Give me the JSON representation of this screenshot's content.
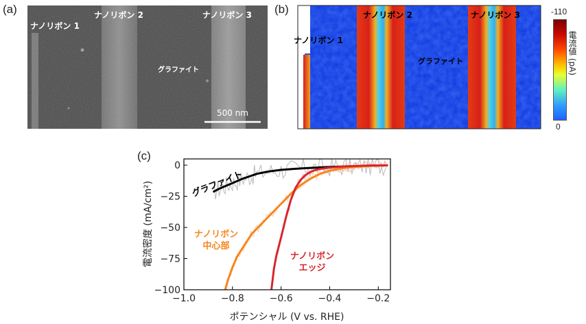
{
  "panel_a": {
    "letter": "(a)",
    "labels": {
      "ribbon1": "ナノリボン 1",
      "ribbon2": "ナノリボン 2",
      "ribbon3": "ナノリボン 3",
      "graphite": "グラファイト"
    },
    "scalebar": "500 nm"
  },
  "panel_b": {
    "letter": "(b)",
    "labels": {
      "ribbon1": "ナノリボン 1",
      "ribbon2": "ナノリボン 2",
      "ribbon3": "ナノリボン 3",
      "graphite": "グラファイト"
    },
    "colorbar": {
      "title": "電流値 (pA)",
      "max_label": "-110",
      "min_label": "0"
    }
  },
  "panel_c": {
    "letter": "(c)"
  },
  "chart_data": {
    "type": "line",
    "xlabel": "ポテンシャル (V vs. RHE)",
    "ylabel": "電流密度 (mA/cm²)",
    "xlim": [
      -1.0,
      -0.15
    ],
    "ylim": [
      -100,
      5
    ],
    "xticks": [
      -1.0,
      -0.8,
      -0.6,
      -0.4,
      -0.2
    ],
    "xtick_labels": [
      "−1.0",
      "−0.8",
      "−0.6",
      "−0.4",
      "−0.2"
    ],
    "yticks": [
      0,
      -25,
      -50,
      -75,
      -100
    ],
    "ytick_labels": [
      "0",
      "−25",
      "−50",
      "−75",
      "−100"
    ],
    "series": [
      {
        "name": "グラファイト",
        "color": "#000000",
        "raw_color": "#b9b9b9",
        "x": [
          -0.88,
          -0.85,
          -0.82,
          -0.79,
          -0.76,
          -0.73,
          -0.7,
          -0.65,
          -0.6,
          -0.55,
          -0.5,
          -0.45,
          -0.4,
          -0.35,
          -0.3,
          -0.25,
          -0.2,
          -0.16
        ],
        "y": [
          -21.5,
          -18.5,
          -16,
          -13.5,
          -11,
          -9,
          -7,
          -5,
          -3.8,
          -3,
          -2.4,
          -1.9,
          -1.5,
          -1.1,
          -0.8,
          -0.5,
          -0.3,
          -0.2
        ]
      },
      {
        "name": "ナノリボン中心部",
        "label_lines": [
          "ナノリボン",
          "中心部"
        ],
        "color": "#f7841d",
        "raw_color": "#fcd2ab",
        "x": [
          -0.83,
          -0.82,
          -0.8,
          -0.78,
          -0.75,
          -0.72,
          -0.68,
          -0.64,
          -0.6,
          -0.56,
          -0.52,
          -0.48,
          -0.44,
          -0.4,
          -0.35,
          -0.3,
          -0.25,
          -0.2,
          -0.16
        ],
        "y": [
          -100,
          -93,
          -82,
          -73,
          -64,
          -55,
          -47,
          -39,
          -31,
          -23,
          -16,
          -11,
          -7,
          -4.5,
          -2.5,
          -1.5,
          -0.8,
          -0.4,
          -0.2
        ]
      },
      {
        "name": "ナノリボンエッジ",
        "label_lines": [
          "ナノリボン",
          "エッジ"
        ],
        "color": "#d7262c",
        "raw_color": "#f3b7b3",
        "x": [
          -0.64,
          -0.635,
          -0.63,
          -0.62,
          -0.6,
          -0.58,
          -0.56,
          -0.54,
          -0.52,
          -0.5,
          -0.48,
          -0.46,
          -0.44,
          -0.4,
          -0.35,
          -0.3,
          -0.25,
          -0.2,
          -0.16
        ],
        "y": [
          -100,
          -92,
          -84,
          -73,
          -58,
          -42,
          -28,
          -18,
          -12,
          -8,
          -5.5,
          -4,
          -3,
          -2,
          -1.2,
          -0.7,
          -0.4,
          -0.2,
          -0.1
        ]
      }
    ]
  }
}
